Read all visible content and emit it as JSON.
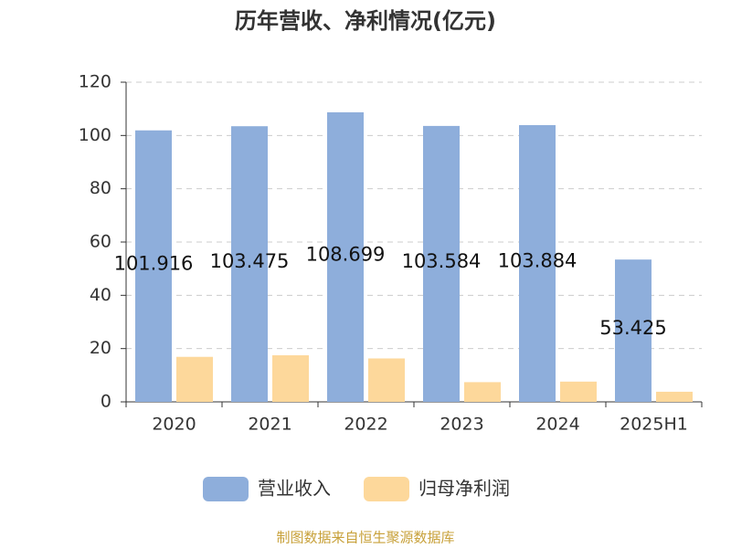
{
  "chart_data": {
    "type": "bar",
    "title": "历年营收、净利情况(亿元)",
    "categories": [
      "2020",
      "2021",
      "2022",
      "2023",
      "2024",
      "2025H1"
    ],
    "series": [
      {
        "name": "营业收入",
        "color": "#8eaedb",
        "values": [
          101.916,
          103.475,
          108.699,
          103.584,
          103.884,
          53.425
        ],
        "labels": true
      },
      {
        "name": "归母净利润",
        "color": "#fdd89b",
        "values": [
          16.9,
          17.5,
          16.3,
          7.4,
          7.6,
          3.8
        ],
        "labels": false
      }
    ],
    "ylim": [
      0,
      120
    ],
    "yticks": [
      0,
      20,
      40,
      60,
      80,
      100,
      120
    ],
    "grid": true,
    "legend": "bottom",
    "source": "制图数据来自恒生聚源数据库"
  }
}
